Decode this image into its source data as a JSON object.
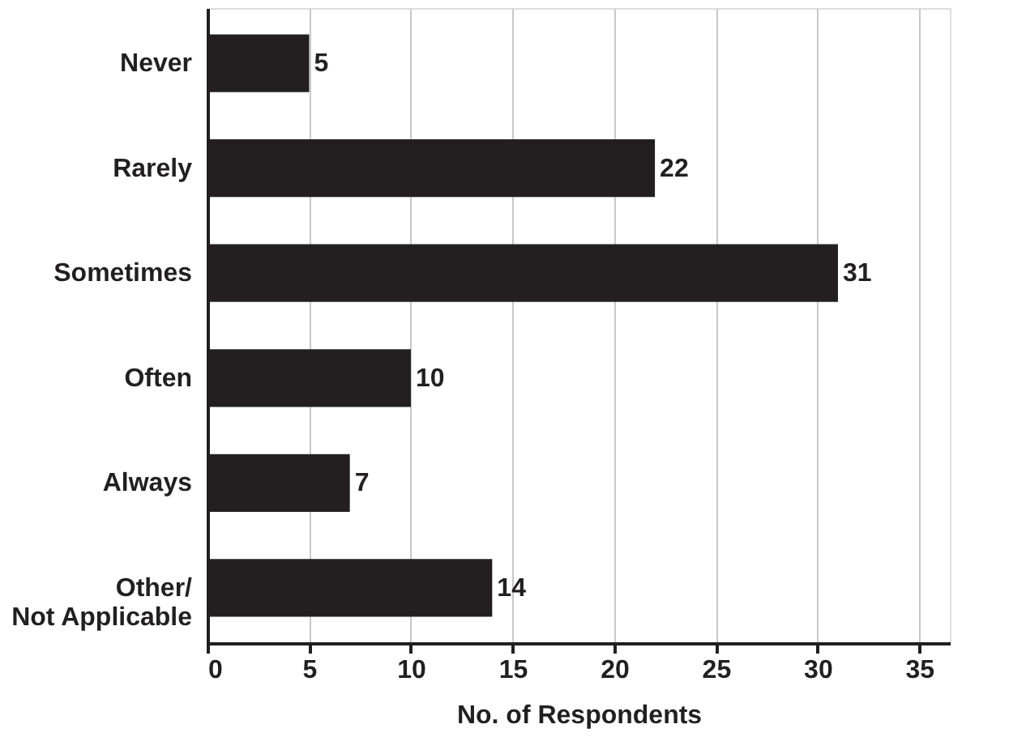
{
  "chart_data": {
    "type": "bar",
    "orientation": "horizontal",
    "xlabel": "No. of Respondents",
    "categories": [
      "Never",
      "Rarely",
      "Sometimes",
      "Often",
      "Always",
      "Other/\nNot Applicable"
    ],
    "values": [
      5,
      22,
      31,
      10,
      7,
      14
    ],
    "color": "#231f20",
    "xlim": [
      0,
      36.5
    ],
    "xticks": [
      0,
      5,
      10,
      15,
      20,
      25,
      30,
      35
    ],
    "grid": "x",
    "data_labels": true
  }
}
